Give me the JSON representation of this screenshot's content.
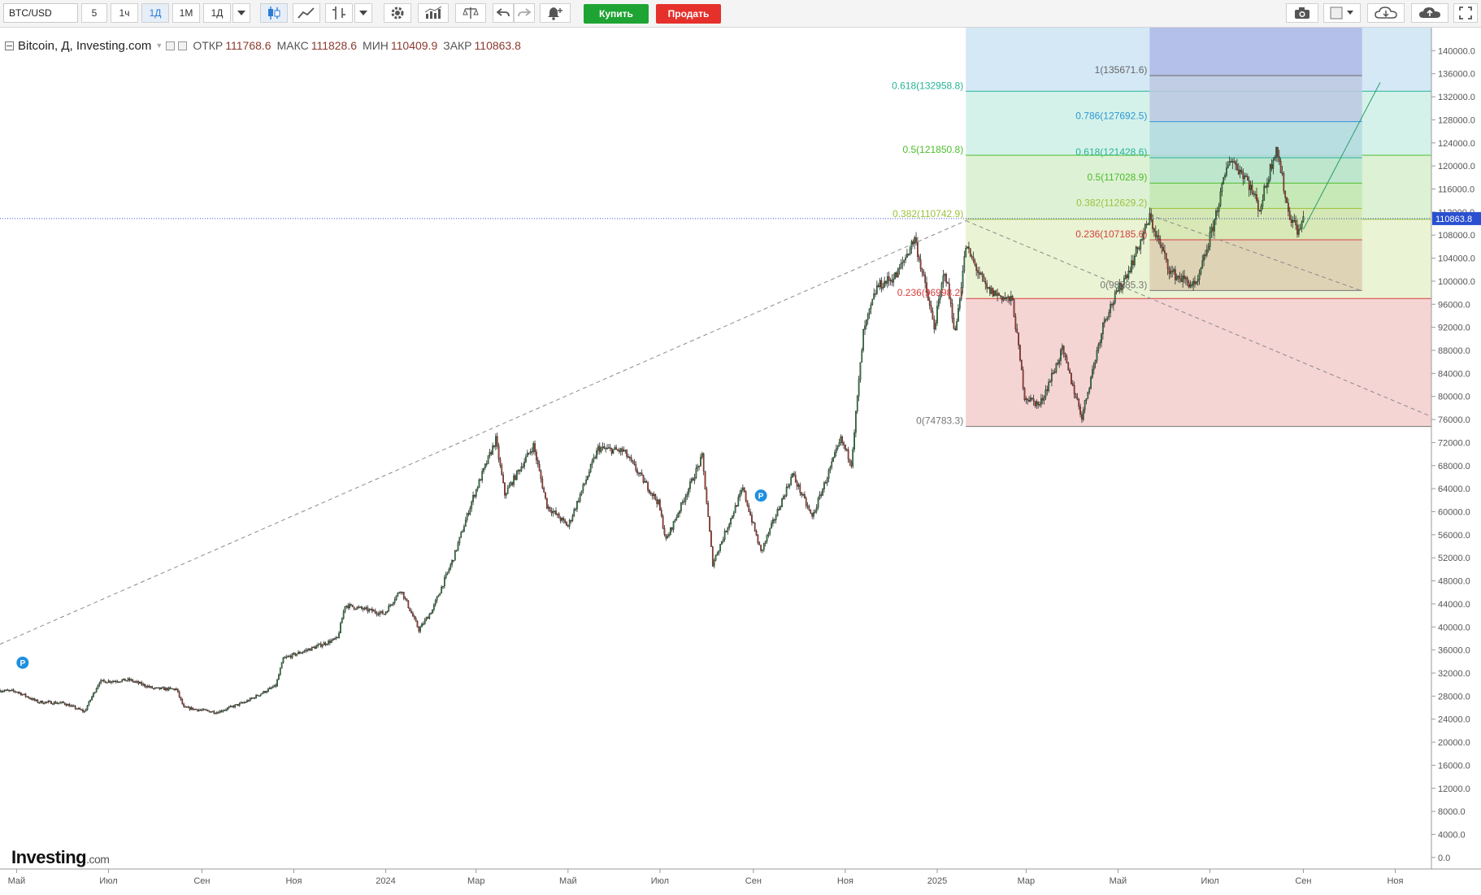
{
  "toolbar": {
    "symbol_value": "BTC/USD",
    "intervals": [
      "5",
      "1ч",
      "1Д",
      "1М",
      "1Д"
    ],
    "active_interval_index": 2,
    "buy_label": "Купить",
    "sell_label": "Продать",
    "icons": [
      "dropdown-icon",
      "candles-icon",
      "line-chart-icon",
      "bars-icon",
      "settings-icon",
      "indicators-icon",
      "compare-icon",
      "undo-icon",
      "redo-icon",
      "alert-add-icon",
      "camera-icon",
      "color-square-icon",
      "cloud-download-icon",
      "cloud-upload-icon",
      "fullscreen-icon"
    ],
    "colors": {
      "buy": "#1ea433",
      "sell": "#e5302b"
    }
  },
  "legend": {
    "title": "Bitcoin, Д, Investing.com",
    "open_label": "ОТКР",
    "open_value": "111768.6",
    "high_label": "МАКС",
    "high_value": "111828.6",
    "low_label": "МИН",
    "low_value": "110409.9",
    "close_label": "ЗАКР",
    "close_value": "110863.8"
  },
  "logo": {
    "main": "Investing",
    "suffix": ".com"
  },
  "chart_data": {
    "type": "candlestick",
    "instrument": "BTC/USD",
    "interval": "1Д",
    "ylim": [
      -2000,
      144000
    ],
    "y_ticks": [
      0,
      4000,
      8000,
      12000,
      16000,
      20000,
      24000,
      28000,
      32000,
      36000,
      40000,
      44000,
      48000,
      52000,
      56000,
      60000,
      64000,
      68000,
      72000,
      76000,
      80000,
      84000,
      88000,
      92000,
      96000,
      100000,
      104000,
      108000,
      112000,
      116000,
      120000,
      124000,
      128000,
      132000,
      136000,
      140000
    ],
    "y_tick_labels": [
      "0.0",
      "4000.0",
      "8000.0",
      "12000.0",
      "16000.0",
      "20000.0",
      "24000.0",
      "28000.0",
      "32000.0",
      "36000.0",
      "40000.0",
      "44000.0",
      "48000.0",
      "52000.0",
      "56000.0",
      "60000.0",
      "64000.0",
      "68000.0",
      "72000.0",
      "76000.0",
      "80000.0",
      "84000.0",
      "88000.0",
      "92000.0",
      "96000.0",
      "100000.0",
      "104000.0",
      "108000.0",
      "112000.0",
      "116000.0",
      "120000.0",
      "124000.0",
      "128000.0",
      "132000.0",
      "136000.0",
      "140000.0"
    ],
    "x_ticks": [
      {
        "date": "2023-05-01",
        "label": "Май"
      },
      {
        "date": "2023-07-01",
        "label": "Июл"
      },
      {
        "date": "2023-09-01",
        "label": "Сен"
      },
      {
        "date": "2023-11-01",
        "label": "Ноя"
      },
      {
        "date": "2024-01-01",
        "label": "2024"
      },
      {
        "date": "2024-03-01",
        "label": "Мар"
      },
      {
        "date": "2024-05-01",
        "label": "Май"
      },
      {
        "date": "2024-07-01",
        "label": "Июл"
      },
      {
        "date": "2024-09-01",
        "label": "Сен"
      },
      {
        "date": "2024-11-01",
        "label": "Ноя"
      },
      {
        "date": "2025-01-01",
        "label": "2025"
      },
      {
        "date": "2025-03-01",
        "label": "Мар"
      },
      {
        "date": "2025-05-01",
        "label": "Май"
      },
      {
        "date": "2025-07-01",
        "label": "Июл"
      },
      {
        "date": "2025-09-01",
        "label": "Сен"
      },
      {
        "date": "2025-11-01",
        "label": "Ноя"
      }
    ],
    "x_range": [
      "2023-04-20",
      "2025-11-25"
    ],
    "price_path": [
      [
        "2023-04-20",
        29000
      ],
      [
        "2023-05-01",
        28800
      ],
      [
        "2023-05-15",
        27000
      ],
      [
        "2023-06-01",
        26800
      ],
      [
        "2023-06-15",
        25300
      ],
      [
        "2023-06-25",
        30500
      ],
      [
        "2023-07-15",
        30800
      ],
      [
        "2023-07-31",
        29300
      ],
      [
        "2023-08-15",
        29200
      ],
      [
        "2023-08-20",
        26000
      ],
      [
        "2023-09-11",
        25200
      ],
      [
        "2023-09-30",
        27000
      ],
      [
        "2023-10-20",
        29800
      ],
      [
        "2023-10-25",
        34500
      ],
      [
        "2023-11-15",
        36500
      ],
      [
        "2023-11-30",
        38000
      ],
      [
        "2023-12-05",
        43800
      ],
      [
        "2023-12-31",
        42300
      ],
      [
        "2024-01-11",
        46500
      ],
      [
        "2024-01-23",
        39500
      ],
      [
        "2024-02-01",
        43000
      ],
      [
        "2024-02-15",
        52000
      ],
      [
        "2024-02-28",
        62500
      ],
      [
        "2024-03-14",
        72500
      ],
      [
        "2024-03-20",
        63000
      ],
      [
        "2024-04-08",
        71500
      ],
      [
        "2024-04-17",
        61000
      ],
      [
        "2024-05-01",
        57500
      ],
      [
        "2024-05-21",
        71000
      ],
      [
        "2024-06-07",
        70500
      ],
      [
        "2024-06-30",
        61500
      ],
      [
        "2024-07-05",
        55000
      ],
      [
        "2024-07-29",
        69500
      ],
      [
        "2024-08-05",
        51000
      ],
      [
        "2024-08-25",
        64000
      ],
      [
        "2024-09-06",
        53000
      ],
      [
        "2024-09-27",
        66500
      ],
      [
        "2024-10-10",
        59000
      ],
      [
        "2024-10-29",
        72500
      ],
      [
        "2024-11-05",
        68500
      ],
      [
        "2024-11-13",
        91000
      ],
      [
        "2024-11-22",
        99000
      ],
      [
        "2024-12-05",
        101000
      ],
      [
        "2024-12-17",
        107500
      ],
      [
        "2024-12-30",
        92000
      ],
      [
        "2025-01-06",
        102000
      ],
      [
        "2025-01-13",
        91000
      ],
      [
        "2025-01-20",
        106000
      ],
      [
        "2025-02-03",
        98500
      ],
      [
        "2025-02-20",
        96500
      ],
      [
        "2025-02-28",
        80000
      ],
      [
        "2025-03-10",
        78500
      ],
      [
        "2025-03-25",
        88000
      ],
      [
        "2025-04-07",
        76500
      ],
      [
        "2025-04-22",
        93500
      ],
      [
        "2025-05-10",
        103000
      ],
      [
        "2025-05-22",
        111000
      ],
      [
        "2025-06-05",
        101500
      ],
      [
        "2025-06-22",
        99000
      ],
      [
        "2025-07-03",
        109500
      ],
      [
        "2025-07-14",
        121500
      ],
      [
        "2025-07-25",
        118000
      ],
      [
        "2025-08-03",
        112500
      ],
      [
        "2025-08-14",
        123500
      ],
      [
        "2025-08-22",
        112000
      ],
      [
        "2025-08-29",
        108500
      ],
      [
        "2025-09-01",
        110863.8
      ]
    ],
    "last_price": 110863.8,
    "last_price_label": "110863.8",
    "fib_left": {
      "x_range": [
        "2025-01-20",
        "2025-11-25"
      ],
      "levels": [
        {
          "ratio": "0.618",
          "label": "0.618(132958.8)",
          "price": 132958.8,
          "color": "#26b496"
        },
        {
          "ratio": "0.5",
          "label": "0.5(121850.8)",
          "price": 121850.8,
          "color": "#4bbd2a"
        },
        {
          "ratio": "0.382",
          "label": "0.382(110742.9)",
          "price": 110742.9,
          "color": "#9bc23a"
        },
        {
          "ratio": "0.236",
          "label": "0.236(96998.2)",
          "price": 96998.2,
          "color": "#d44040"
        },
        {
          "ratio": "0",
          "label": "0(74783.3)",
          "price": 74783.3,
          "color": "#777777"
        }
      ],
      "zones": [
        {
          "from": 132958.8,
          "to": 145000,
          "color": "#d4e8f6"
        },
        {
          "from": 121850.8,
          "to": 132958.8,
          "color": "#d5f2ea"
        },
        {
          "from": 110742.9,
          "to": 121850.8,
          "color": "#ddf1d4"
        },
        {
          "from": 96998.2,
          "to": 110742.9,
          "color": "#eaf3d3"
        },
        {
          "from": 74783.3,
          "to": 96998.2,
          "color": "#f5d4d4"
        }
      ]
    },
    "fib_right": {
      "x_range": [
        "2025-05-22",
        "2025-10-10"
      ],
      "levels": [
        {
          "ratio": "1",
          "label": "1(135671.6)",
          "price": 135671.6,
          "color": "#666666"
        },
        {
          "ratio": "0.786",
          "label": "0.786(127692.5)",
          "price": 127692.5,
          "color": "#2d97d4"
        },
        {
          "ratio": "0.618",
          "label": "0.618(121428.6)",
          "price": 121428.6,
          "color": "#26b496"
        },
        {
          "ratio": "0.5",
          "label": "0.5(117028.9)",
          "price": 117028.9,
          "color": "#4bbd2a"
        },
        {
          "ratio": "0.382",
          "label": "0.382(112629.2)",
          "price": 112629.2,
          "color": "#9bc23a"
        },
        {
          "ratio": "0.236",
          "label": "0.236(107185.6)",
          "price": 107185.6,
          "color": "#d44040"
        },
        {
          "ratio": "0",
          "label": "0(98385.3)",
          "price": 98385.3,
          "color": "#777777"
        }
      ],
      "zones": [
        {
          "from": 135671.6,
          "to": 145000,
          "color": "#aeb9e6"
        },
        {
          "from": 127692.5,
          "to": 135671.6,
          "color": "#bcc8e2"
        },
        {
          "from": 121428.6,
          "to": 127692.5,
          "color": "#b4dae0"
        },
        {
          "from": 117028.9,
          "to": 121428.6,
          "color": "#b9e4cb"
        },
        {
          "from": 112629.2,
          "to": 117028.9,
          "color": "#c3e8b2"
        },
        {
          "from": 107185.6,
          "to": 112629.2,
          "color": "#d5e5b0"
        },
        {
          "from": 98385.3,
          "to": 107185.6,
          "color": "#ddcdb0"
        }
      ]
    },
    "trend_lines": [
      {
        "style": "dashed",
        "from": [
          "2023-04-20",
          37000
        ],
        "to": [
          "2025-01-20",
          110500
        ]
      },
      {
        "style": "dashed",
        "from": [
          "2025-01-20",
          110500
        ],
        "to": [
          "2025-11-25",
          76500
        ]
      },
      {
        "style": "dashed",
        "from": [
          "2025-05-22",
          111500
        ],
        "to": [
          "2025-10-10",
          98300
        ]
      },
      {
        "style": "solid",
        "from": [
          "2025-09-01",
          109000
        ],
        "to": [
          "2025-10-22",
          134500
        ]
      }
    ],
    "markers": [
      {
        "date": "2023-05-05",
        "price": 33800,
        "label": "P"
      },
      {
        "date": "2024-09-06",
        "price": 62800,
        "label": "P"
      }
    ]
  }
}
